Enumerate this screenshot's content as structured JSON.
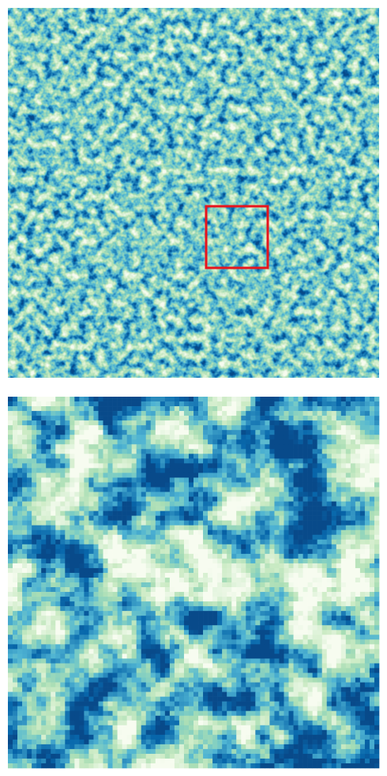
{
  "colormap": [
    "#f7fcf0",
    "#e0f3db",
    "#ccebc5",
    "#a8ddb5",
    "#7bccc4",
    "#4eb3d3",
    "#2b8cbe",
    "#0868ac",
    "#084a8a"
  ]
}
